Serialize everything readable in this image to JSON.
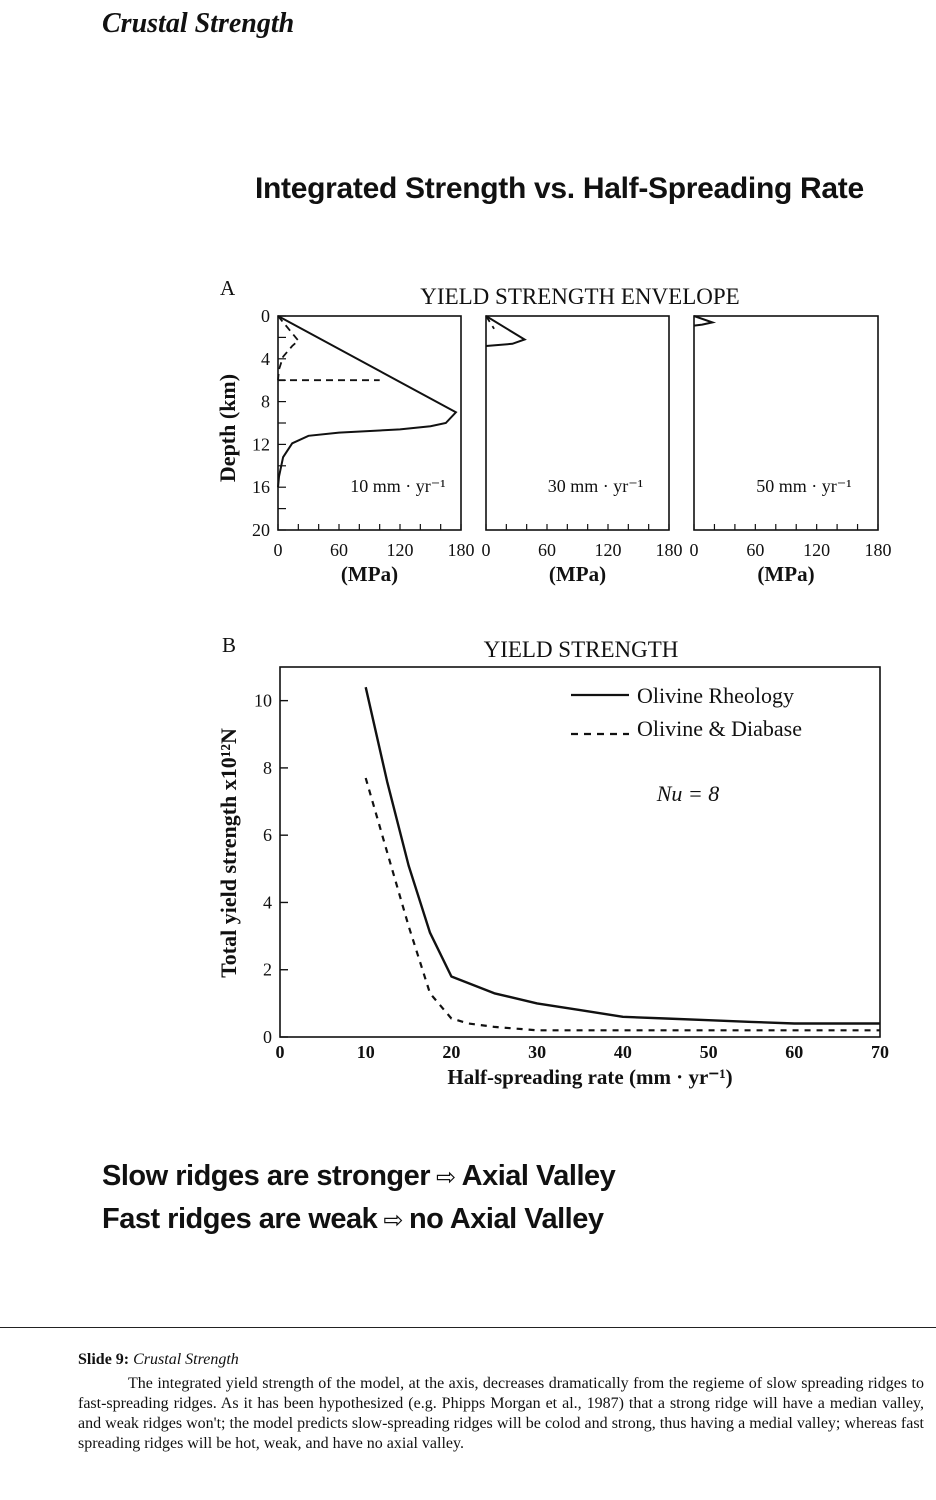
{
  "header": {
    "title": "Crustal Strength"
  },
  "slide": {
    "title": "Integrated Strength vs. Half-Spreading Rate"
  },
  "panel_a": {
    "label": "A",
    "title": "YIELD STRENGTH ENVELOPE",
    "ylabel": "Depth (km)",
    "xlabel": "(MPa)",
    "subpanels": [
      "10 mm · yr⁻¹",
      "30 mm · yr⁻¹",
      "50 mm · yr⁻¹"
    ]
  },
  "panel_b": {
    "label": "B",
    "title": "YIELD STRENGTH",
    "ylabel": "Total yield strength x10¹²N",
    "xlabel": "Half-spreading rate (mm · yr⁻¹)",
    "annotation": "Nu = 8",
    "legend": [
      "Olivine Rheology",
      "Olivine & Diabase"
    ]
  },
  "chart_data": [
    {
      "type": "line",
      "title": "YIELD STRENGTH ENVELOPE",
      "xlabel": "(MPa)",
      "ylabel": "Depth (km)",
      "xlim": [
        0,
        180
      ],
      "ylim": [
        20,
        0
      ],
      "x_ticks": [
        0,
        60,
        120,
        180
      ],
      "y_ticks": [
        0,
        4,
        8,
        12,
        16,
        20
      ],
      "panels": [
        {
          "label": "10 mm · yr⁻¹",
          "series": [
            {
              "style": "solid",
              "points": [
                [
                  0,
                  0
                ],
                [
                  175,
                  9
                ],
                [
                  165,
                  10
                ],
                [
                  150,
                  10.3
                ],
                [
                  120,
                  10.6
                ],
                [
                  60,
                  10.9
                ],
                [
                  30,
                  11.2
                ],
                [
                  14,
                  11.9
                ],
                [
                  5,
                  13.2
                ],
                [
                  1,
                  15
                ],
                [
                  0,
                  16
                ]
              ]
            },
            {
              "style": "dashed",
              "points": [
                [
                  0,
                  0
                ],
                [
                  20,
                  2.3
                ],
                [
                  14,
                  2.8
                ],
                [
                  5,
                  3.8
                ],
                [
                  1,
                  5
                ],
                [
                  0,
                  6
                ]
              ]
            },
            {
              "style": "dashed",
              "points": [
                [
                  0,
                  6
                ],
                [
                  100,
                  6
                ]
              ]
            }
          ]
        },
        {
          "label": "30 mm · yr⁻¹",
          "series": [
            {
              "style": "solid",
              "points": [
                [
                  0,
                  0
                ],
                [
                  38,
                  2.2
                ],
                [
                  26,
                  2.6
                ],
                [
                  0,
                  2.8
                ]
              ]
            },
            {
              "style": "dashed",
              "points": [
                [
                  0,
                  0
                ],
                [
                  8,
                  1.2
                ]
              ]
            }
          ]
        },
        {
          "label": "50 mm · yr⁻¹",
          "series": [
            {
              "style": "solid",
              "points": [
                [
                  0,
                  0
                ],
                [
                  18,
                  0.6
                ],
                [
                  8,
                  0.8
                ],
                [
                  0,
                  0.9
                ]
              ]
            }
          ]
        }
      ]
    },
    {
      "type": "line",
      "title": "YIELD STRENGTH",
      "xlabel": "Half-spreading rate (mm · yr⁻¹)",
      "ylabel": "Total yield strength x10¹²N",
      "xlim": [
        0,
        70
      ],
      "ylim": [
        0,
        11
      ],
      "x_ticks": [
        0,
        10,
        20,
        30,
        40,
        50,
        60,
        70
      ],
      "y_ticks": [
        0,
        2,
        4,
        6,
        8,
        10
      ],
      "annotation": "Nu = 8",
      "legend_position": "top-right",
      "series": [
        {
          "name": "Olivine Rheology",
          "style": "solid",
          "x": [
            10,
            12.5,
            15,
            17.5,
            20,
            25,
            30,
            35,
            40,
            45,
            50,
            55,
            60,
            70
          ],
          "y": [
            10.4,
            7.6,
            5.1,
            3.1,
            1.8,
            1.3,
            1.0,
            0.8,
            0.6,
            0.55,
            0.5,
            0.45,
            0.4,
            0.4
          ]
        },
        {
          "name": "Olivine & Diabase",
          "style": "dashed",
          "x": [
            10,
            12.5,
            15,
            17.5,
            20,
            22,
            25,
            30,
            35,
            40,
            50,
            60,
            70
          ],
          "y": [
            7.7,
            5.5,
            3.3,
            1.3,
            0.55,
            0.4,
            0.3,
            0.2,
            0.2,
            0.2,
            0.2,
            0.2,
            0.2
          ]
        }
      ]
    }
  ],
  "takeaways": [
    {
      "left": "Slow ridges are stronger",
      "arrow": "⇨",
      "right": "Axial Valley"
    },
    {
      "left": "Fast ridges are weak",
      "arrow": "⇨",
      "right": "no Axial Valley"
    }
  ],
  "caption": {
    "label": "Slide 9:",
    "subtitle": "Crustal Strength",
    "body": "The integrated yield strength of the model, at the axis, decreases dramatically from the regieme of slow spreading ridges to fast-spreading ridges.  As it has been hypothesized (e.g. Phipps Morgan et al., 1987) that a strong ridge will have a median valley, and weak ridges won't; the model predicts slow-spreading ridges will be colod and strong, thus having a medial valley; whereas fast spreading ridges will be hot, weak, and have no axial valley."
  }
}
